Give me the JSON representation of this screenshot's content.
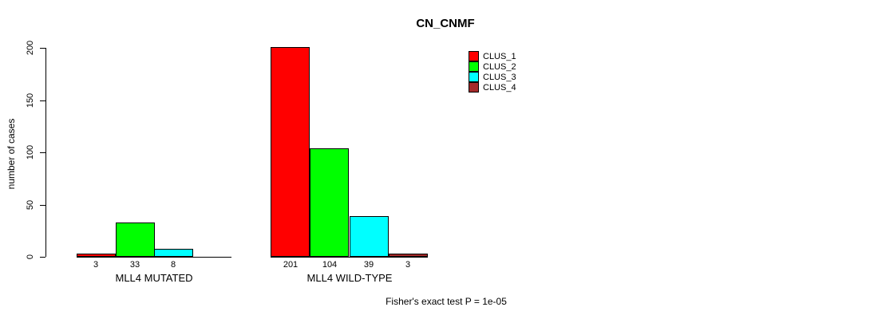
{
  "chart_data": {
    "type": "bar",
    "title": "CN_CNMF",
    "ylabel": "number of cases",
    "xlabel": "",
    "ylim": [
      0,
      200
    ],
    "yticks": [
      0,
      50,
      100,
      150,
      200
    ],
    "grid": false,
    "legend_position": "top-right",
    "series": [
      {
        "name": "CLUS_1",
        "color": "#FF0000"
      },
      {
        "name": "CLUS_2",
        "color": "#00FF00"
      },
      {
        "name": "CLUS_3",
        "color": "#00FFFF"
      },
      {
        "name": "CLUS_4",
        "color": "#A52A2A"
      }
    ],
    "groups": [
      {
        "label": "MLL4 MUTATED",
        "values": [
          3,
          33,
          8,
          0
        ],
        "bar_labels": [
          "3",
          "33",
          "8",
          ""
        ]
      },
      {
        "label": "MLL4 WILD-TYPE",
        "values": [
          201,
          104,
          39,
          3
        ],
        "bar_labels": [
          "201",
          "104",
          "39",
          "3"
        ]
      }
    ],
    "footnote": "Fisher's exact test P = 1e-05"
  }
}
